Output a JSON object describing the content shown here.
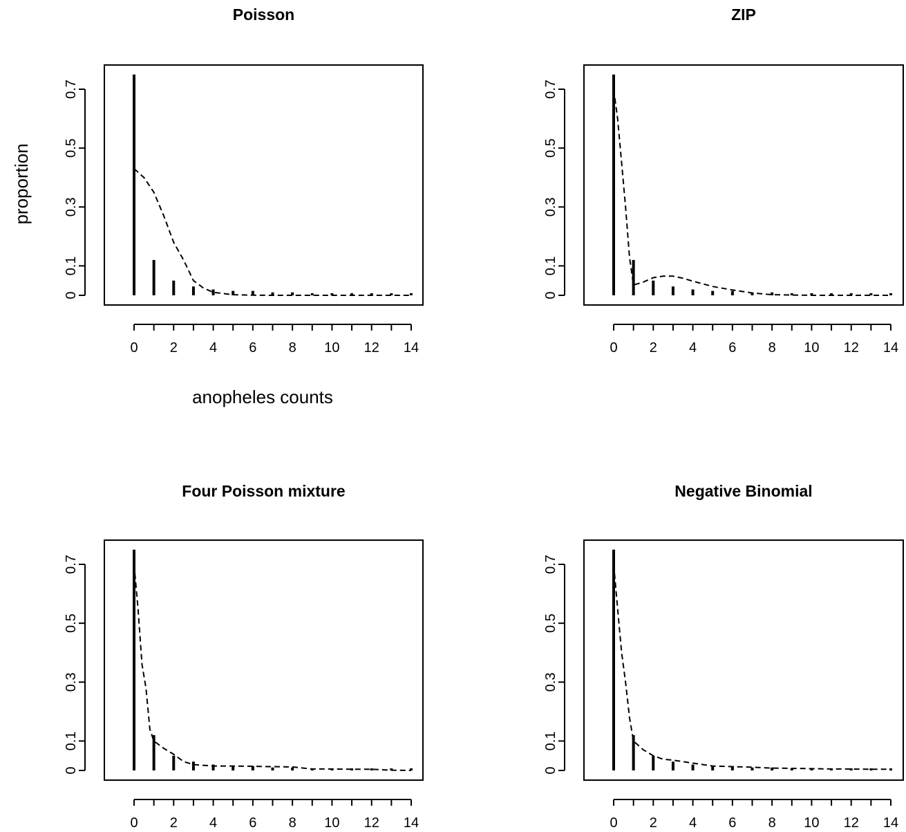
{
  "figure": {
    "ylabel": "proportion",
    "xlabel": "anopheles counts"
  },
  "chart_data": [
    {
      "type": "bar",
      "title": "Poisson",
      "xlabel": "anopheles counts",
      "ylabel": "proportion",
      "xlim": [
        -1.5,
        14.5
      ],
      "ylim": [
        0,
        0.78
      ],
      "xticks": [
        "0",
        "2",
        "4",
        "6",
        "8",
        "10",
        "12",
        "14"
      ],
      "yticks": [
        "0",
        "0.1",
        "0.3",
        "0.5",
        "0.7"
      ],
      "x": [
        0,
        1,
        2,
        3,
        4,
        5,
        6,
        7,
        8,
        9,
        10,
        11,
        12,
        13,
        14
      ],
      "observed": [
        0.75,
        0.12,
        0.05,
        0.03,
        0.02,
        0.015,
        0.015,
        0.01,
        0.01,
        0.005,
        0.005,
        0.005,
        0.005,
        0.005,
        0.005
      ],
      "fitted_line": {
        "style": "dashed",
        "x": [
          0,
          0.5,
          1,
          1.5,
          2,
          2.5,
          3,
          3.5,
          4,
          5,
          6,
          7,
          8,
          9,
          10,
          11,
          12,
          13,
          14
        ],
        "y": [
          0.43,
          0.4,
          0.35,
          0.27,
          0.18,
          0.12,
          0.05,
          0.025,
          0.01,
          0.002,
          0.0005,
          0,
          0,
          0,
          0,
          0,
          0,
          0,
          0
        ]
      }
    },
    {
      "type": "bar",
      "title": "ZIP",
      "xlabel": "",
      "ylabel": "",
      "xlim": [
        -1.5,
        14.5
      ],
      "ylim": [
        0,
        0.78
      ],
      "xticks": [
        "0",
        "2",
        "4",
        "6",
        "8",
        "10",
        "12",
        "14"
      ],
      "yticks": [
        "0",
        "0.1",
        "0.3",
        "0.5",
        "0.7"
      ],
      "x": [
        0,
        1,
        2,
        3,
        4,
        5,
        6,
        7,
        8,
        9,
        10,
        11,
        12,
        13,
        14
      ],
      "observed": [
        0.75,
        0.12,
        0.05,
        0.03,
        0.02,
        0.015,
        0.015,
        0.01,
        0.01,
        0.005,
        0.005,
        0.005,
        0.005,
        0.005,
        0.005
      ],
      "fitted_line": {
        "style": "dashed",
        "x": [
          0,
          0.2,
          0.4,
          0.6,
          0.8,
          1,
          1.5,
          2,
          2.5,
          3,
          3.5,
          4,
          5,
          6,
          7,
          8,
          9,
          10,
          11,
          12,
          13,
          14
        ],
        "y": [
          0.7,
          0.6,
          0.45,
          0.3,
          0.13,
          0.035,
          0.045,
          0.06,
          0.065,
          0.065,
          0.058,
          0.048,
          0.03,
          0.018,
          0.008,
          0.002,
          0.001,
          0,
          0,
          0,
          0,
          0
        ]
      }
    },
    {
      "type": "bar",
      "title": "Four Poisson mixture",
      "xlabel": "",
      "ylabel": "",
      "xlim": [
        -1.5,
        14.5
      ],
      "ylim": [
        0,
        0.78
      ],
      "xticks": [
        "0",
        "2",
        "4",
        "6",
        "8",
        "10",
        "12",
        "14"
      ],
      "yticks": [
        "0",
        "0.1",
        "0.3",
        "0.5",
        "0.7"
      ],
      "x": [
        0,
        1,
        2,
        3,
        4,
        5,
        6,
        7,
        8,
        9,
        10,
        11,
        12,
        13,
        14
      ],
      "observed": [
        0.75,
        0.12,
        0.05,
        0.03,
        0.02,
        0.015,
        0.015,
        0.01,
        0.01,
        0.005,
        0.005,
        0.005,
        0.005,
        0.005,
        0.005
      ],
      "fitted_line": {
        "style": "dashed",
        "x": [
          0,
          0.2,
          0.4,
          0.6,
          0.8,
          1,
          1.5,
          2,
          2.5,
          3,
          4,
          5,
          6,
          7,
          8,
          9,
          10,
          11,
          12,
          13,
          14
        ],
        "y": [
          0.7,
          0.55,
          0.36,
          0.28,
          0.14,
          0.1,
          0.075,
          0.055,
          0.03,
          0.02,
          0.015,
          0.015,
          0.014,
          0.013,
          0.012,
          0.005,
          0.005,
          0.004,
          0.004,
          0.001,
          0
        ]
      }
    },
    {
      "type": "bar",
      "title": "Negative Binomial",
      "xlabel": "",
      "ylabel": "",
      "xlim": [
        -1.5,
        14.5
      ],
      "ylim": [
        0,
        0.78
      ],
      "xticks": [
        "0",
        "2",
        "4",
        "6",
        "8",
        "10",
        "12",
        "14"
      ],
      "yticks": [
        "0",
        "0.1",
        "0.3",
        "0.5",
        "0.7"
      ],
      "x": [
        0,
        1,
        2,
        3,
        4,
        5,
        6,
        7,
        8,
        9,
        10,
        11,
        12,
        13,
        14
      ],
      "observed": [
        0.75,
        0.12,
        0.05,
        0.03,
        0.02,
        0.015,
        0.015,
        0.01,
        0.01,
        0.005,
        0.005,
        0.005,
        0.005,
        0.005,
        0.005
      ],
      "fitted_line": {
        "style": "dashed",
        "x": [
          0,
          0.2,
          0.4,
          0.6,
          0.8,
          1,
          1.5,
          2,
          2.5,
          3,
          4,
          5,
          6,
          7,
          8,
          9,
          10,
          11,
          12,
          13,
          14
        ],
        "y": [
          0.7,
          0.55,
          0.4,
          0.3,
          0.18,
          0.1,
          0.07,
          0.05,
          0.038,
          0.035,
          0.025,
          0.015,
          0.013,
          0.011,
          0.008,
          0.007,
          0.006,
          0.005,
          0.005,
          0.004,
          0.004
        ]
      }
    }
  ]
}
